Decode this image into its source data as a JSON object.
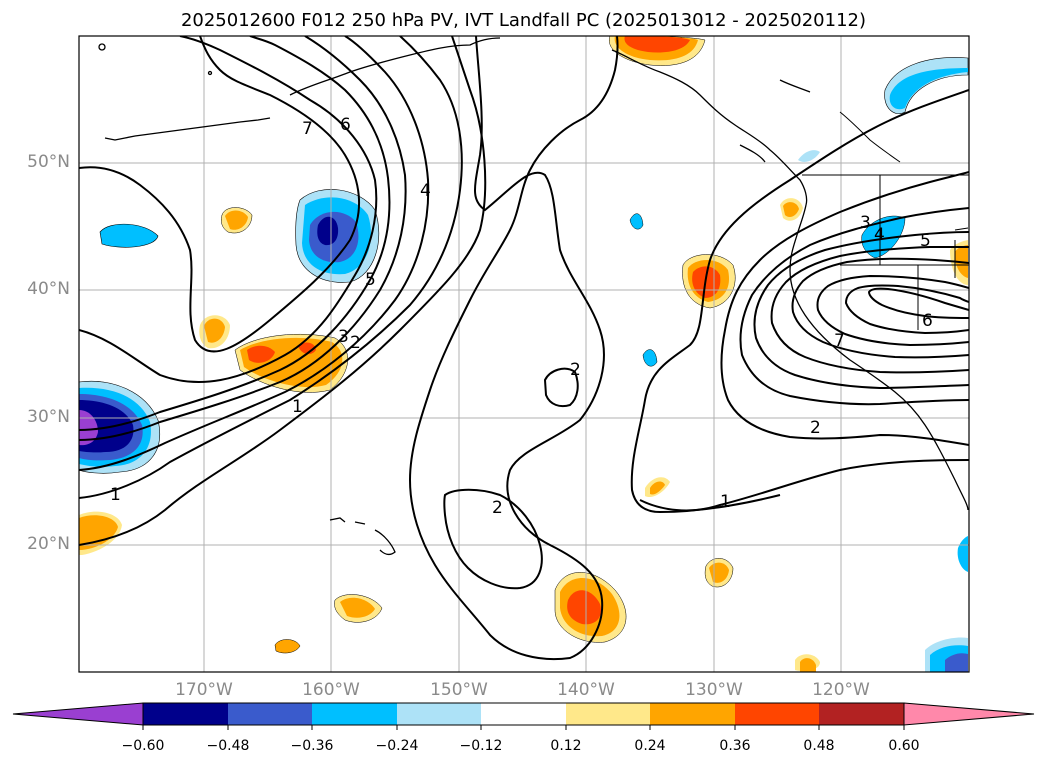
{
  "title": "2025012600 F012 250 hPa PV, IVT Landfall PC (2025013012 - 2025020112)",
  "lat_labels": [
    "50°N",
    "40°N",
    "30°N",
    "20°N"
  ],
  "lon_labels": [
    "170°W",
    "160°W",
    "150°W",
    "140°W",
    "130°W",
    "120°W"
  ],
  "contour_labels": [
    "1",
    "1",
    "1",
    "2",
    "2",
    "2",
    "2",
    "3",
    "3",
    "4",
    "4",
    "5",
    "5",
    "6",
    "6",
    "7",
    "7"
  ],
  "colorbar": {
    "ticks": [
      "−0.60",
      "−0.48",
      "−0.36",
      "−0.24",
      "−0.12",
      "0.12",
      "0.24",
      "0.36",
      "0.48",
      "0.60"
    ],
    "colors": [
      "#9a3fd1",
      "#00008b",
      "#3a5bcc",
      "#00bfff",
      "#ade2f7",
      "#ffffff",
      "#ffe88a",
      "#ffa500",
      "#ff4500",
      "#b22222",
      "#ff88aa"
    ]
  },
  "map": {
    "extent_lon": [
      -180,
      -110
    ],
    "extent_lat": [
      10,
      60
    ],
    "gridline_lons": [
      -170,
      -160,
      -150,
      -140,
      -130,
      -120
    ],
    "gridline_lats": [
      20,
      30,
      40,
      50
    ]
  }
}
